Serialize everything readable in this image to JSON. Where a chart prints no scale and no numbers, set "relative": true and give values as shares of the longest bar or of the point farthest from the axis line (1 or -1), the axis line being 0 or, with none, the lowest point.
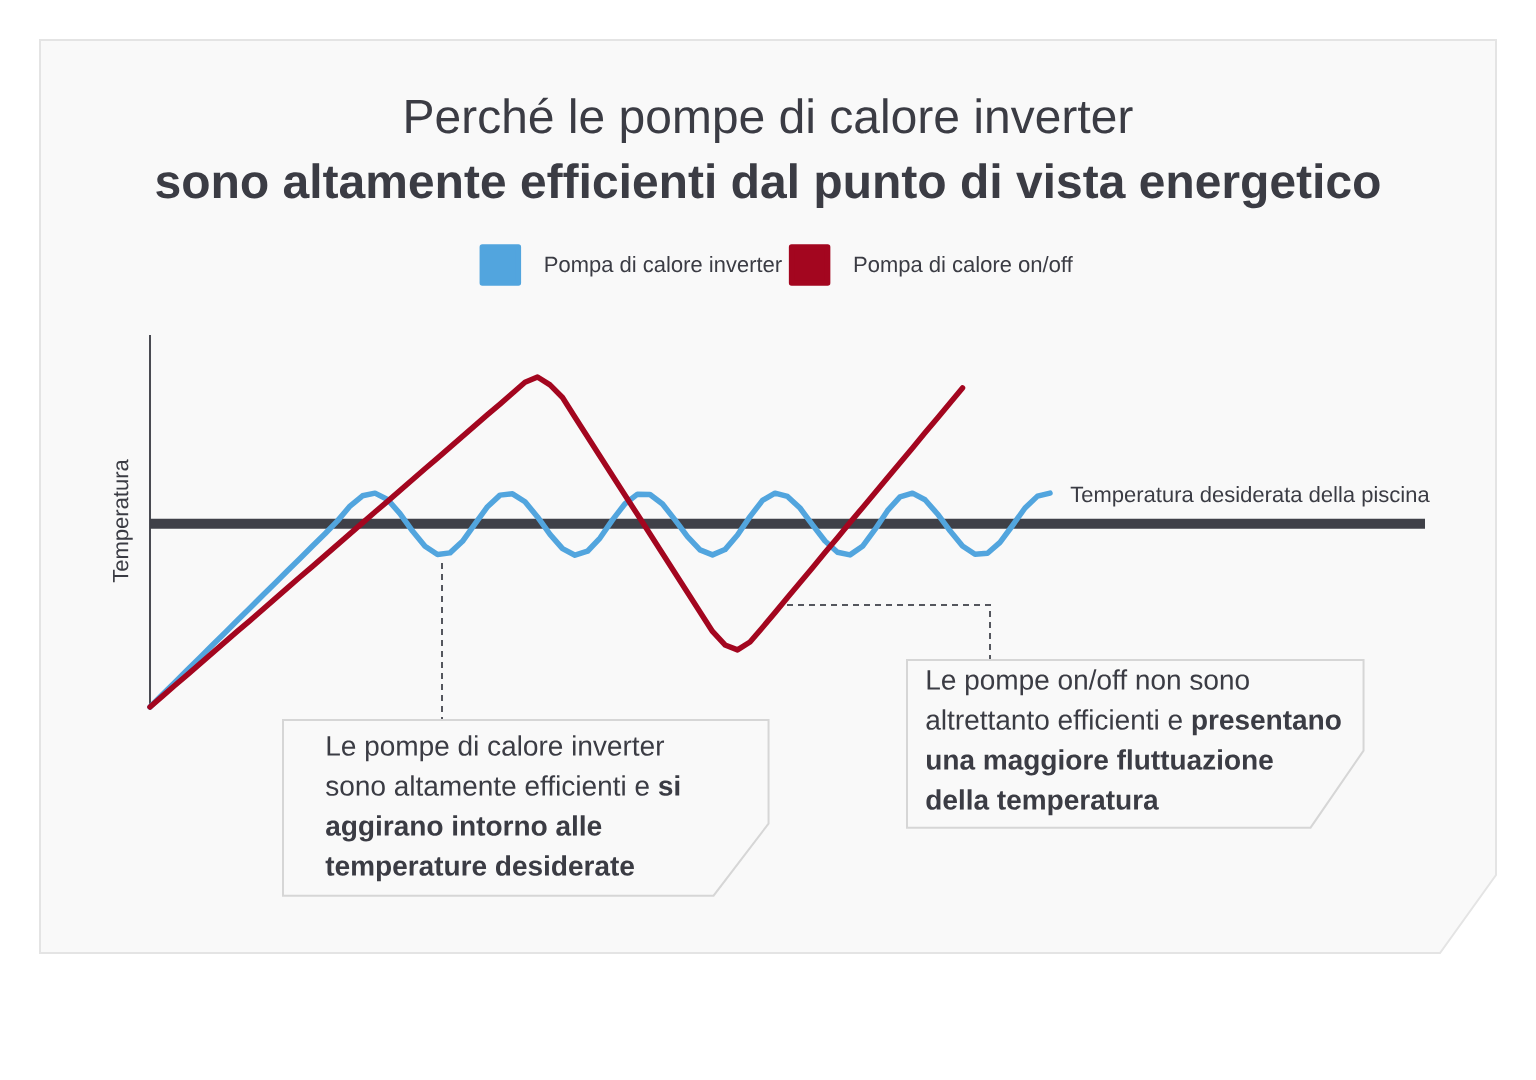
{
  "chart_data": {
    "type": "line",
    "title": "Perché le pompe di calore inverter",
    "subtitle": "sono altamente efficienti dal punto di vista energetico",
    "ylabel": "Temperatura",
    "relative": true,
    "legend": "top",
    "categories": [
      null,
      null,
      null,
      null,
      null,
      null,
      null,
      null,
      null,
      null,
      null,
      null,
      null,
      null,
      null,
      null,
      null,
      null,
      null,
      null,
      null,
      null,
      null,
      null,
      null,
      null,
      null,
      null,
      null,
      null,
      null,
      null,
      null,
      null,
      null,
      null,
      null,
      null,
      null,
      null,
      null,
      null,
      null,
      null,
      null,
      null,
      null,
      null,
      null,
      null,
      null,
      null,
      null,
      null,
      null,
      null,
      null,
      null,
      null,
      null,
      null,
      null,
      null,
      null,
      null,
      null,
      null,
      null,
      null,
      null,
      null,
      null,
      null,
      null,
      null,
      null,
      null,
      null,
      null,
      null,
      null,
      null,
      null,
      null,
      null,
      null,
      null,
      null,
      null,
      null,
      null,
      null,
      null,
      null,
      null,
      null,
      null,
      null,
      null,
      null,
      null,
      null,
      null
    ],
    "series": [
      {
        "name": "Pompa di calore inverter",
        "color": "#52a5de",
        "values": [
          0,
          0.038,
          0.075,
          0.113,
          0.15,
          0.188,
          0.225,
          0.263,
          0.3,
          0.338,
          0.375,
          0.413,
          0.45,
          0.488,
          0.525,
          0.564,
          0.609,
          0.64,
          0.648,
          0.629,
          0.586,
          0.533,
          0.487,
          0.462,
          0.467,
          0.502,
          0.555,
          0.607,
          0.642,
          0.646,
          0.622,
          0.576,
          0.523,
          0.48,
          0.46,
          0.472,
          0.512,
          0.567,
          0.616,
          0.645,
          0.644,
          0.615,
          0.567,
          0.516,
          0.476,
          0.461,
          0.477,
          0.521,
          0.577,
          0.626,
          0.648,
          0.638,
          0.603,
          0.552,
          0.503,
          0.469,
          0.461,
          0.487,
          0.538,
          0.595,
          0.637,
          0.648,
          0.628,
          0.585,
          0.534,
          0.488,
          0.463,
          0.466,
          0.499,
          0.55,
          0.603,
          0.639,
          0.648,
          null,
          null,
          null,
          null,
          null,
          null,
          null,
          null,
          null,
          null,
          null,
          null,
          null,
          null,
          null,
          null,
          null,
          null,
          null,
          null,
          null,
          null,
          null,
          null,
          null,
          null,
          null,
          null,
          null,
          null
        ]
      },
      {
        "name": "Pompa di calore on/off",
        "color": "#a3061f",
        "values": [
          0,
          0.033,
          0.066,
          0.098,
          0.131,
          0.164,
          0.197,
          0.23,
          0.262,
          0.295,
          0.328,
          0.361,
          0.394,
          0.426,
          0.459,
          0.492,
          0.525,
          0.558,
          0.591,
          0.623,
          0.656,
          0.689,
          0.722,
          0.754,
          0.787,
          0.82,
          0.853,
          0.886,
          0.918,
          0.951,
          0.984,
          1.0,
          0.976,
          0.938,
          0.878,
          0.819,
          0.76,
          0.701,
          0.642,
          0.583,
          0.524,
          0.465,
          0.406,
          0.347,
          0.288,
          0.229,
          0.188,
          0.173,
          0.197,
          0.241,
          0.286,
          0.332,
          0.377,
          0.422,
          0.468,
          0.513,
          0.559,
          0.604,
          0.649,
          0.695,
          0.74,
          0.785,
          0.831,
          0.876,
          0.921,
          0.967,
          null,
          null,
          null,
          null,
          null,
          null,
          null,
          null,
          null,
          null,
          null,
          null,
          null,
          null,
          null,
          null,
          null,
          null,
          null,
          null,
          null,
          null,
          null,
          null,
          null,
          null,
          null,
          null,
          null,
          null,
          null,
          null,
          null,
          null,
          null,
          null,
          null
        ]
      }
    ],
    "ref_lines": [
      {
        "axis": "y",
        "value": 0.555,
        "label": "Temperatura desiderata della piscina",
        "color": "#3f4048"
      }
    ],
    "annotations": [
      "Le pompe di calore inverter sono altamente efficienti e **si aggirano intorno alle temperature desiderate**",
      "Le pompe on/off non sono altrettanto efficienti e **presentano una maggiore fluttuazione della temperatura**"
    ]
  }
}
